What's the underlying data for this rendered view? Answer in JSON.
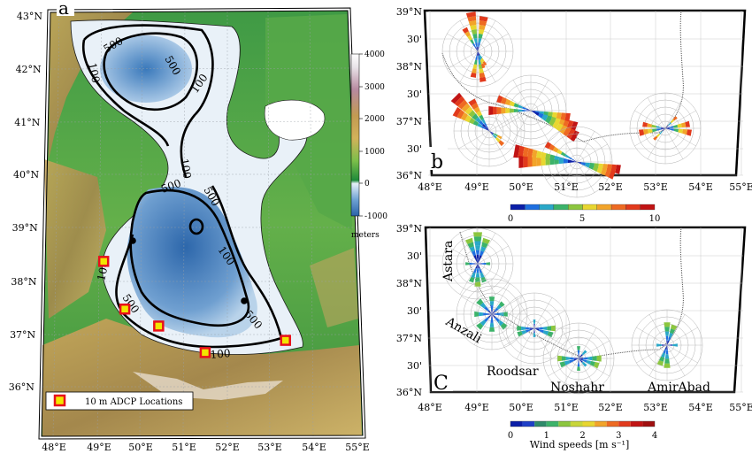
{
  "panel_a": {
    "letter": "a",
    "lat_labels": [
      "43°N",
      "42°N",
      "41°N",
      "40°N",
      "39°N",
      "38°N",
      "37°N",
      "36°N"
    ],
    "lon_labels": [
      "48°E",
      "49°E",
      "50°E",
      "51°E",
      "52°E",
      "53°E",
      "54°E",
      "55°E"
    ],
    "contours": [
      {
        "value": "500",
        "where": "north basin"
      },
      {
        "value": "100",
        "where": "north shelf"
      },
      {
        "value": "100",
        "where": "middle"
      },
      {
        "value": "500",
        "where": "south basin"
      },
      {
        "value": "100",
        "where": "south shelf"
      }
    ],
    "contour_label_100": "100",
    "contour_label_500": "500",
    "legend_label": "10 m ADCP Locations",
    "adcp_sites": [
      {
        "lon": 49.05,
        "lat": 38.37
      },
      {
        "lon": 49.55,
        "lat": 37.47
      },
      {
        "lon": 50.35,
        "lat": 37.15
      },
      {
        "lon": 51.45,
        "lat": 36.65
      },
      {
        "lon": 53.35,
        "lat": 36.88
      }
    ],
    "colorbar": {
      "ticks": [
        "4000",
        "3000",
        "2000",
        "1000",
        "0",
        "-1000"
      ],
      "unit": "meters"
    },
    "colors": {
      "deep": "#2f6fb3",
      "shallow": "#e8f0f8",
      "land_low": "#2e8b3e",
      "land_mid": "#b89a4c",
      "land_high": "#ffffff",
      "marker_fill": "#f2e600",
      "marker_edge": "#e8101a"
    }
  },
  "panel_b": {
    "letter": "b",
    "lat_labels": [
      "39°N",
      "30'",
      "38°N",
      "30'",
      "37°N",
      "30'",
      "36°N"
    ],
    "lon_labels": [
      "48°E",
      "49°E",
      "50°E",
      "51°E",
      "52°E",
      "53°E",
      "54°E",
      "55°E"
    ],
    "colorbar": {
      "ticks": [
        "0",
        "5",
        "10"
      ]
    }
  },
  "panel_c": {
    "letter": "C",
    "lat_labels": [
      "39°N",
      "30'",
      "38°N",
      "30'",
      "37°N",
      "30'",
      "36°N"
    ],
    "lon_labels": [
      "48°E",
      "49°E",
      "50°E",
      "51°E",
      "52°E",
      "53°E",
      "54°E",
      "55°E"
    ],
    "stations": [
      "Astara",
      "Anzali",
      "Roodsar",
      "Noshahr",
      "AmirAbad"
    ],
    "colorbar": {
      "ticks": [
        "0",
        "1",
        "2",
        "3",
        "4"
      ],
      "label": "Wind speeds [m s⁻¹]"
    }
  },
  "wind_colors": [
    "#0b1fa8",
    "#1e6fe0",
    "#2aa8c8",
    "#3cb36a",
    "#8cc63f",
    "#e8d630",
    "#f2a42a",
    "#ee6a22",
    "#e23a1c",
    "#c11414"
  ]
}
